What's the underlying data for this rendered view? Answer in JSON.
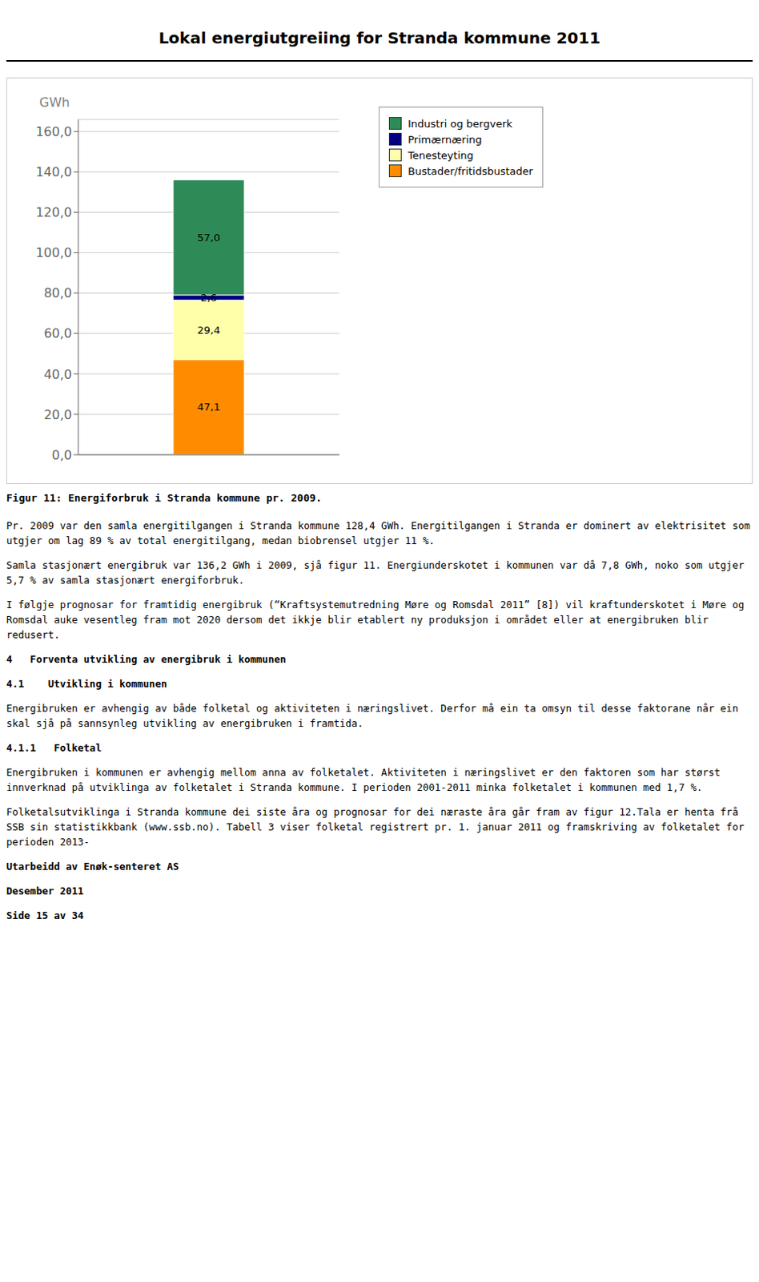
{
  "chart_data": {
    "type": "bar",
    "title": "Lokal energiutgreiing for Stranda kommune 2011",
    "subtitle": "Figur 11: Energiforbruk i Stranda kommune pr. 2009.",
    "y_label": "GWh",
    "categories": [
      null
    ],
    "series": [
      {
        "name": "Bustader/fritidsbustader",
        "color": "#FF8C00",
        "values": [
          47.1
        ],
        "value_labels": [
          "47,1"
        ]
      },
      {
        "name": "Tenesteyting",
        "color": "#FFFFAA",
        "values": [
          29.4
        ],
        "value_labels": [
          "29,4"
        ]
      },
      {
        "name": "Primærnæring",
        "color": "#000080",
        "values": [
          2.6
        ],
        "value_labels": [
          "2,6"
        ]
      },
      {
        "name": "Industri og bergverk",
        "color": "#2E8B57",
        "values": [
          57.0
        ],
        "value_labels": [
          "57,0"
        ]
      }
    ],
    "stacked": true,
    "data_labels": true,
    "grid": true,
    "legend": "right",
    "tick_labels": "y",
    "ylim": [
      0,
      166
    ],
    "yticks": [
      {
        "value": 0,
        "label": "0,0"
      },
      {
        "value": 20,
        "label": "20,0"
      },
      {
        "value": 40,
        "label": "40,0"
      },
      {
        "value": 60,
        "label": "60,0"
      },
      {
        "value": 80,
        "label": "80,0"
      },
      {
        "value": 100,
        "label": "100,0"
      },
      {
        "value": 120,
        "label": "120,0"
      },
      {
        "value": 140,
        "label": "140,0"
      },
      {
        "value": 160,
        "label": "160,0"
      }
    ],
    "annotations": [
      "Pr. 2009 var den samla energitilgangen i Stranda kommune 128,4 GWh. Energitilgangen i Stranda er dominert av elektrisitet som utgjer om lag 89 % av total energitilgang, medan biobrensel utgjer 11 %.",
      "Samla stasjonært energibruk var 136,2 GWh i 2009, sjå figur 11. Energiunderskotet i kommunen var då 7,8 GWh, noko som utgjer 5,7 % av samla stasjonært energiforbruk.",
      "I følgje prognosar for framtidig energibruk (“Kraftsystemutredning Møre og Romsdal 2011” [8]) vil kraftunderskotet i Møre og Romsdal auke vesentleg fram mot 2020 dersom det ikkje blir etablert ny produksjon i området eller at energibruken blir redusert.",
      "4   Forventa utvikling av energibruk i kommunen",
      "4.1    Utvikling i kommunen",
      "Energibruken er avhengig av både folketal og aktiviteten i næringslivet. Derfor må ein ta omsyn til desse faktorane når ein skal sjå på sannsynleg utvikling av energibruken i framtida.",
      "4.1.1   Folketal",
      "Energibruken i kommunen er avhengig mellom anna av folketalet. Aktiviteten i næringslivet er den faktoren som har størst innverknad på utviklinga av folketalet i Stranda kommune. I perioden 2001-2011 minka folketalet i kommunen med 1,7 %.",
      "Folketalsutviklinga i Stranda kommune dei siste åra og prognosar for dei næraste åra går fram av figur 12.Tala er henta frå SSB sin statistikkbank (www.ssb.no). Tabell 3 viser folketal registrert pr. 1. januar 2011 og framskriving av folketalet for perioden 2013-",
      "Utarbeidd av Enøk-senteret AS",
      "Desember 2011",
      "Side 15 av 34"
    ]
  }
}
